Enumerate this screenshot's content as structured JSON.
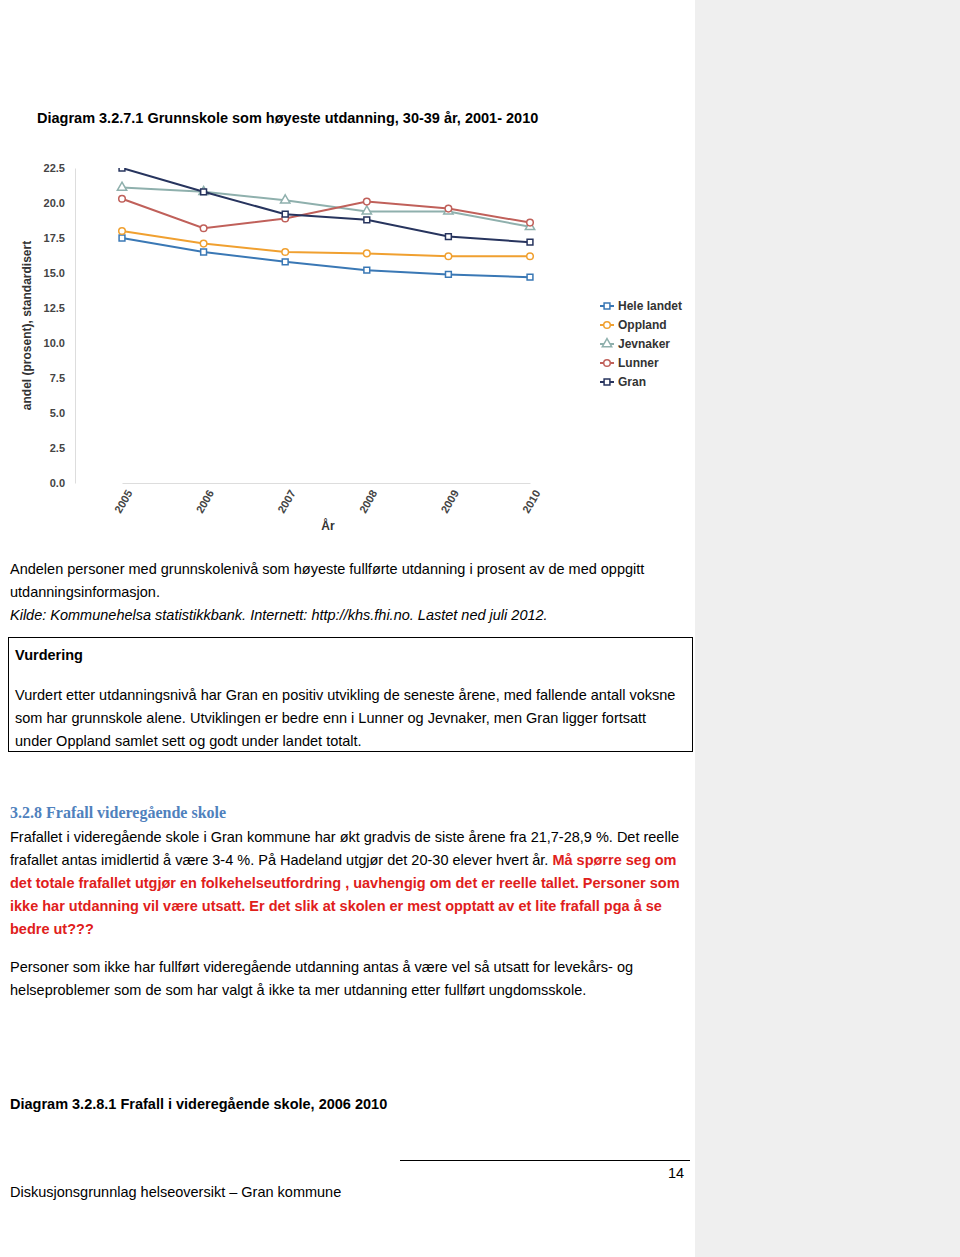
{
  "document": {
    "chart_title": "Diagram 3.2.7.1 Grunnskole som høyeste utdanning, 30-39 år, 2001- 2010",
    "caption": "Andelen personer med grunnskolenivå som høyeste fullførte utdanning i prosent av de med oppgitt utdanningsinformasjon.",
    "source": "Kilde: Kommunehelsa statistikkbank. Internett: http://khs.fhi.no. Lastet ned juli 2012.",
    "assessment": {
      "heading": "Vurdering",
      "text": "Vurdert etter utdanningsnivå har Gran en positiv utvikling de seneste årene, med fallende antall voksne som har grunnskole alene. Utviklingen er bedre enn i Lunner og Jevnaker, men Gran ligger fortsatt under Oppland samlet sett og godt under landet totalt."
    },
    "section": {
      "heading": "3.2.8 Frafall videregående skole",
      "text": "Frafallet i videregående skole i Gran kommune har økt gradvis de siste årene fra 21,7-28,9 %. Det reelle frafallet antas imidlertid å være 3-4 %. På Hadeland utgjør det 20-30 elever hvert år.",
      "highlight": "Må spørre seg om det totale frafallet utgjør en folkehelseutfordring , uavhengig om det er reelle tallet. Personer som ikke har utdanning vil være utsatt. Er det slik at skolen er mest opptatt av et lite frafall pga å se bedre ut???",
      "paragraph": "Personer som ikke har fullført videregående utdanning antas å være vel så utsatt for levekårs- og helseproblemer som de som har valgt å ikke ta mer utdanning etter fullført ungdomsskole."
    },
    "next_chart_title": "Diagram 3.2.8.1 Frafall i videregående skole, 2006 2010",
    "footer": {
      "page_number": 14,
      "text": "Diskusjonsgrunnlag helseoversikt – Gran kommune"
    }
  },
  "chart_data": {
    "type": "line",
    "x_label": "År",
    "y_label": "andel (prosent), standardisert",
    "categories": [
      "2005",
      "2006",
      "2007",
      "2008",
      "2009",
      "2010"
    ],
    "series": [
      {
        "name": "Hele landet",
        "color": "#3a78b5",
        "marker": "square",
        "values": [
          17.5,
          16.5,
          15.8,
          15.2,
          14.9,
          14.7
        ]
      },
      {
        "name": "Oppland",
        "color": "#f0a030",
        "marker": "circle",
        "values": [
          18.0,
          17.1,
          16.5,
          16.4,
          16.2,
          16.2
        ]
      },
      {
        "name": "Jevnaker",
        "color": "#8fb0ad",
        "marker": "triangle",
        "values": [
          21.1,
          20.8,
          20.2,
          19.4,
          19.4,
          18.3
        ]
      },
      {
        "name": "Lunner",
        "color": "#c0605a",
        "marker": "circle",
        "values": [
          20.3,
          18.2,
          18.9,
          20.1,
          19.6,
          18.6
        ]
      },
      {
        "name": "Gran",
        "color": "#27345e",
        "marker": "square",
        "values": [
          22.5,
          20.8,
          19.2,
          18.8,
          17.6,
          17.2
        ]
      }
    ],
    "ylim": [
      0,
      22.5
    ],
    "yticks": [
      {
        "value": 0,
        "label": "0.0"
      },
      2.5,
      {
        "value": 5,
        "label": "5.0"
      },
      7.5,
      {
        "value": 10,
        "label": "10.0"
      },
      12.5,
      {
        "value": 15,
        "label": "15.0"
      },
      17.5,
      {
        "value": 20,
        "label": "20.0"
      },
      22.5
    ],
    "grid": false,
    "legend": "right"
  }
}
